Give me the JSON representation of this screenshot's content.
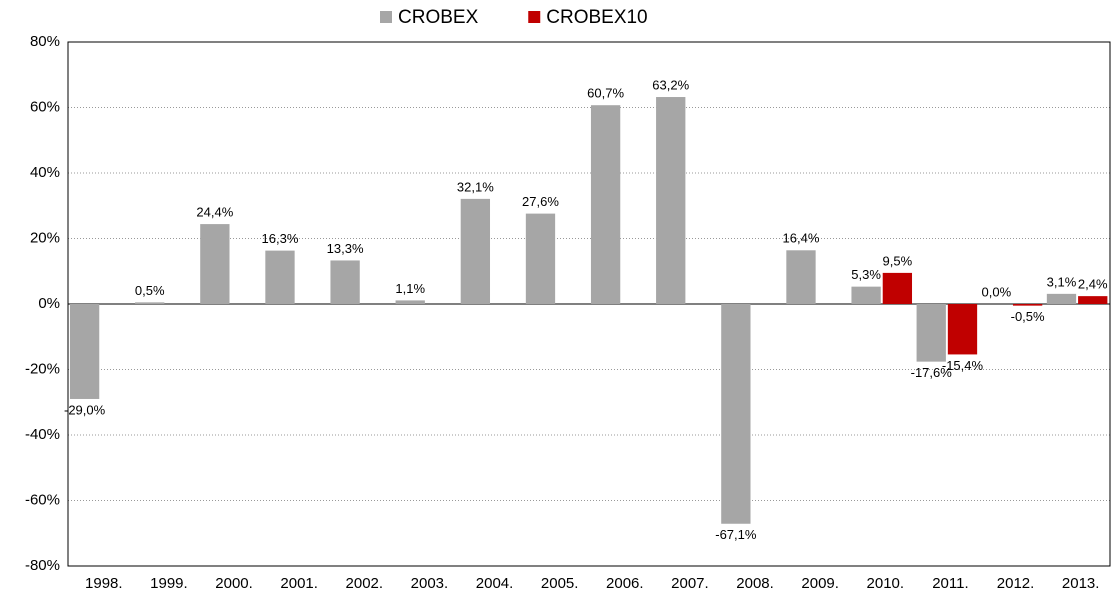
{
  "chart_data": {
    "type": "bar",
    "categories": [
      "1998.",
      "1999.",
      "2000.",
      "2001.",
      "2002.",
      "2003.",
      "2004.",
      "2005.",
      "2006.",
      "2007.",
      "2008.",
      "2009.",
      "2010.",
      "2011.",
      "2012.",
      "2013."
    ],
    "series": [
      {
        "name": "CROBEX",
        "color": "#a6a6a6",
        "values": [
          -29.0,
          0.5,
          24.4,
          16.3,
          13.3,
          1.1,
          32.1,
          27.6,
          60.7,
          63.2,
          -67.1,
          16.4,
          5.3,
          -17.6,
          0.0,
          3.1
        ],
        "value_labels": [
          "-29,0%",
          "0,5%",
          "24,4%",
          "16,3%",
          "13,3%",
          "1,1%",
          "32,1%",
          "27,6%",
          "60,7%",
          "63,2%",
          "-67,1%",
          "16,4%",
          "5,3%",
          "-17,6%",
          "0,0%",
          "3,1%"
        ]
      },
      {
        "name": "CROBEX10",
        "color": "#c00000",
        "values": [
          null,
          null,
          null,
          null,
          null,
          null,
          null,
          null,
          null,
          null,
          null,
          null,
          9.5,
          -15.4,
          -0.5,
          2.4
        ],
        "value_labels": [
          null,
          null,
          null,
          null,
          null,
          null,
          null,
          null,
          null,
          null,
          null,
          null,
          "9,5%",
          "-15,4%",
          "-0,5%",
          "2,4%"
        ]
      }
    ],
    "ylim": [
      -80,
      80
    ],
    "yticks": [
      {
        "value": -80,
        "label": "-80%"
      },
      {
        "value": -60,
        "label": "-60%"
      },
      {
        "value": -40,
        "label": "-40%"
      },
      {
        "value": -20,
        "label": "-20%"
      },
      {
        "value": 0,
        "label": "0%"
      },
      {
        "value": 20,
        "label": "20%"
      },
      {
        "value": 40,
        "label": "40%"
      },
      {
        "value": 60,
        "label": "60%"
      },
      {
        "value": 80,
        "label": "80%"
      }
    ],
    "grid": true,
    "legend": "top"
  }
}
